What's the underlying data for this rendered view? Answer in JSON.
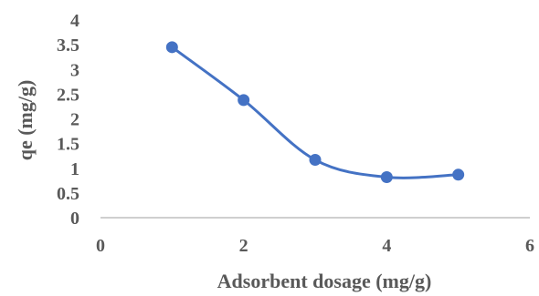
{
  "chart_data": {
    "type": "line",
    "xlabel": "Adsorbent dosage (mg/g)",
    "ylabel": "qe (mg/g)",
    "xlim": [
      0,
      6
    ],
    "ylim": [
      0,
      4
    ],
    "x_ticks": [
      "0",
      "2",
      "4",
      "6"
    ],
    "y_ticks": [
      "0",
      "0.5",
      "1",
      "1.5",
      "2",
      "2.5",
      "3",
      "3.5",
      "4"
    ],
    "grid": false,
    "smooth": true,
    "series": [
      {
        "x": [
          1,
          2,
          3,
          4,
          5
        ],
        "values": [
          3.45,
          2.38,
          1.17,
          0.82,
          0.87
        ],
        "color": "#4472c4"
      }
    ]
  }
}
